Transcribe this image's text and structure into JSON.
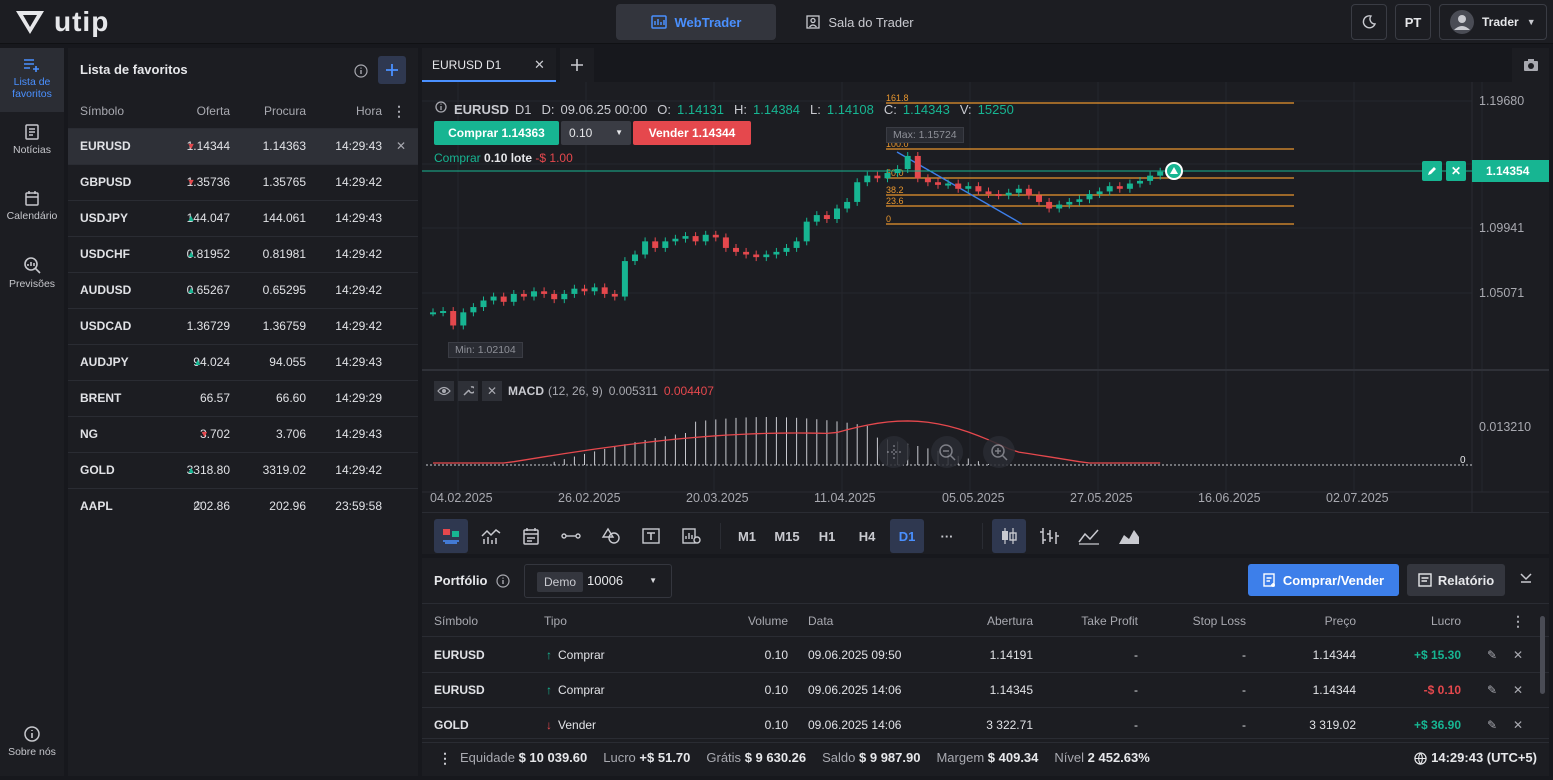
{
  "top": {
    "logo": "utip",
    "nav": [
      {
        "label": "WebTrader"
      },
      {
        "label": "Sala do Trader"
      }
    ],
    "lang": "PT",
    "user": "Trader"
  },
  "leftnav": [
    {
      "label": "Lista de favoritos",
      "icon": "list-add-icon"
    },
    {
      "label": "Notícias",
      "icon": "news-icon"
    },
    {
      "label": "Calendário",
      "icon": "calendar-icon"
    },
    {
      "label": "Previsões",
      "icon": "forecast-icon"
    },
    {
      "label": "Sobre nós",
      "icon": "info-icon"
    }
  ],
  "watchlist": {
    "title": "Lista de favoritos",
    "headers": {
      "symbol": "Símbolo",
      "bid": "Oferta",
      "ask": "Procura",
      "time": "Hora"
    },
    "rows": [
      {
        "symbol": "EURUSD",
        "dir": "down",
        "bid": "1.14344",
        "ask": "1.14363",
        "time": "14:29:43"
      },
      {
        "symbol": "GBPUSD",
        "dir": "down",
        "bid": "1.35736",
        "ask": "1.35765",
        "time": "14:29:42"
      },
      {
        "symbol": "USDJPY",
        "dir": "up",
        "bid": "144.047",
        "ask": "144.061",
        "time": "14:29:43"
      },
      {
        "symbol": "USDCHF",
        "dir": "up",
        "bid": "0.81952",
        "ask": "0.81981",
        "time": "14:29:42"
      },
      {
        "symbol": "AUDUSD",
        "dir": "up",
        "bid": "0.65267",
        "ask": "0.65295",
        "time": "14:29:42"
      },
      {
        "symbol": "USDCAD",
        "dir": "none",
        "bid": "1.36729",
        "ask": "1.36759",
        "time": "14:29:42"
      },
      {
        "symbol": "AUDJPY",
        "dir": "up",
        "bid": "94.024",
        "ask": "94.055",
        "time": "14:29:43"
      },
      {
        "symbol": "BRENT",
        "dir": "none",
        "bid": "66.57",
        "ask": "66.60",
        "time": "14:29:29"
      },
      {
        "symbol": "NG",
        "dir": "down",
        "bid": "3.702",
        "ask": "3.706",
        "time": "14:29:43"
      },
      {
        "symbol": "GOLD",
        "dir": "up",
        "bid": "3318.80",
        "ask": "3319.02",
        "time": "14:29:42"
      },
      {
        "symbol": "AAPL",
        "dir": "clock",
        "bid": "202.86",
        "ask": "202.96",
        "time": "23:59:58"
      }
    ]
  },
  "chart": {
    "tab": "EURUSD D1",
    "ohlc": {
      "symbol": "EURUSD",
      "tf": "D1",
      "d_label": "D:",
      "date": "09.06.25 00:00",
      "o_label": "O:",
      "o": "1.14131",
      "h_label": "H:",
      "h": "1.14384",
      "l_label": "L:",
      "l": "1.14108",
      "c_label": "C:",
      "c": "1.14343",
      "v_label": "V:",
      "v": "15250"
    },
    "buy_btn": "Comprar 1.14363",
    "lot": "0.10",
    "sell_btn": "Vender 1.14344",
    "position_line": {
      "side": "Comprar",
      "lot": "0.10 lote",
      "pl": "-$ 1.00"
    },
    "current_price": "1.14354",
    "max_label": "Max: 1.15724",
    "min_label": "Min: 1.02104",
    "price_axis": [
      "1.19680",
      "1.09941",
      "1.05071"
    ],
    "fib_levels": [
      "161.8",
      "100.0",
      "50.0",
      "38.2",
      "23.6",
      "0"
    ],
    "dates": [
      "04.02.2025",
      "26.02.2025",
      "20.03.2025",
      "11.04.2025",
      "05.05.2025",
      "27.05.2025",
      "16.06.2025",
      "02.07.2025"
    ],
    "macd": {
      "name": "MACD",
      "params": "(12, 26, 9)",
      "v1": "0.005311",
      "v2": "0.004407",
      "axis_top": "0.013210",
      "axis_zero": "0"
    },
    "timeframes": [
      "M1",
      "M15",
      "H1",
      "H4",
      "D1",
      "···"
    ],
    "active_tf": "D1"
  },
  "chart_data": {
    "type": "line",
    "title": "",
    "y_axis_ticks": [
      1.0507,
      1.09941,
      1.1968
    ],
    "ylim": [
      1.0,
      1.2
    ],
    "max": 1.15724,
    "min": 1.02104,
    "last": 1.14354,
    "series": [
      {
        "values": [
          1.036,
          1.037,
          1.026,
          1.036,
          1.04,
          1.045,
          1.048,
          1.044,
          1.05,
          1.048,
          1.052,
          1.05,
          1.046,
          1.05,
          1.054,
          1.052,
          1.055,
          1.05,
          1.048,
          1.075,
          1.08,
          1.09,
          1.085,
          1.09,
          1.092,
          1.094,
          1.09,
          1.095,
          1.093,
          1.085,
          1.082,
          1.08,
          1.078,
          1.08,
          1.082,
          1.085,
          1.09,
          1.105,
          1.11,
          1.107,
          1.115,
          1.12,
          1.135,
          1.14,
          1.138,
          1.142,
          1.145,
          1.155,
          1.138,
          1.135,
          1.133,
          1.134,
          1.13,
          1.132,
          1.128,
          1.126,
          1.125,
          1.127,
          1.13,
          1.125,
          1.12,
          1.115,
          1.118,
          1.12,
          1.122,
          1.126,
          1.128,
          1.132,
          1.13,
          1.134,
          1.136,
          1.14,
          1.143
        ]
      }
    ]
  },
  "portfolio": {
    "title": "Portfólio",
    "account_type": "Demo",
    "account_no": "10006",
    "btn_trade": "Comprar/Vender",
    "btn_report": "Relatório",
    "headers": [
      "Símbolo",
      "Tipo",
      "Volume",
      "Data",
      "Abertura",
      "Take Profit",
      "Stop Loss",
      "Preço",
      "Lucro"
    ],
    "rows": [
      {
        "symbol": "EURUSD",
        "type": "Comprar",
        "dir": "up",
        "volume": "0.10",
        "date": "09.06.2025 09:50",
        "open": "1.14191",
        "tp": "-",
        "sl": "-",
        "price": "1.14344",
        "profit": "+$ 15.30",
        "pos": true
      },
      {
        "symbol": "EURUSD",
        "type": "Comprar",
        "dir": "up",
        "volume": "0.10",
        "date": "09.06.2025 14:06",
        "open": "1.14345",
        "tp": "-",
        "sl": "-",
        "price": "1.14344",
        "profit": "-$ 0.10",
        "pos": false
      },
      {
        "symbol": "GOLD",
        "type": "Vender",
        "dir": "down",
        "volume": "0.10",
        "date": "09.06.2025 14:06",
        "open": "3 322.71",
        "tp": "-",
        "sl": "-",
        "price": "3 319.02",
        "profit": "+$ 36.90",
        "pos": true
      }
    ],
    "footer": {
      "equity_label": "Equidade",
      "equity": "$ 10 039.60",
      "profit_label": "Lucro",
      "profit": "+$ 51.70",
      "free_label": "Grátis",
      "free": "$ 9 630.26",
      "balance_label": "Saldo",
      "balance": "$ 9 987.90",
      "margin_label": "Margem",
      "margin": "$ 409.34",
      "level_label": "Nível",
      "level": "2 452.63%",
      "clock": "14:29:43 (UTC+5)"
    }
  },
  "colors": {
    "up": "#17b592",
    "down": "#e5484d",
    "accent": "#4a90ff",
    "fib": "#e8962e"
  }
}
